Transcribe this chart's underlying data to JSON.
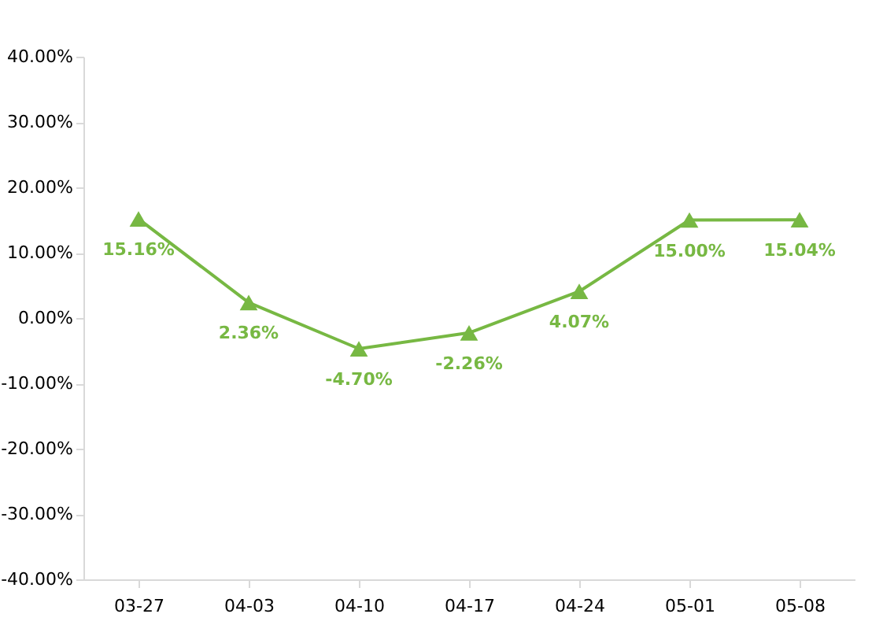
{
  "chart_data": {
    "type": "line",
    "categories": [
      "03-27",
      "04-03",
      "04-10",
      "04-17",
      "04-24",
      "05-01",
      "05-08"
    ],
    "series": [
      {
        "color": "#77b843",
        "values": [
          15.16,
          2.36,
          -4.7,
          -2.26,
          4.07,
          15.0,
          15.04
        ],
        "value_labels": [
          "15.16%",
          "2.36%",
          "-4.70%",
          "-2.26%",
          "4.07%",
          "15.00%",
          "15.04%"
        ]
      }
    ],
    "ylim": [
      -40,
      40
    ],
    "yticks": [
      {
        "value": -40,
        "label": "-40.00%"
      },
      {
        "value": -30,
        "label": "-30.00%"
      },
      {
        "value": -20,
        "label": "-20.00%"
      },
      {
        "value": -10,
        "label": "-10.00%"
      },
      {
        "value": 0,
        "label": "0.00%"
      },
      {
        "value": 10,
        "label": "10.00%"
      },
      {
        "value": 20,
        "label": "20.00%"
      },
      {
        "value": 30,
        "label": "30.00%"
      },
      {
        "value": 40,
        "label": "40.00%"
      }
    ],
    "grid": false,
    "legend": false,
    "marker": "triangle",
    "line_style": "solid"
  }
}
